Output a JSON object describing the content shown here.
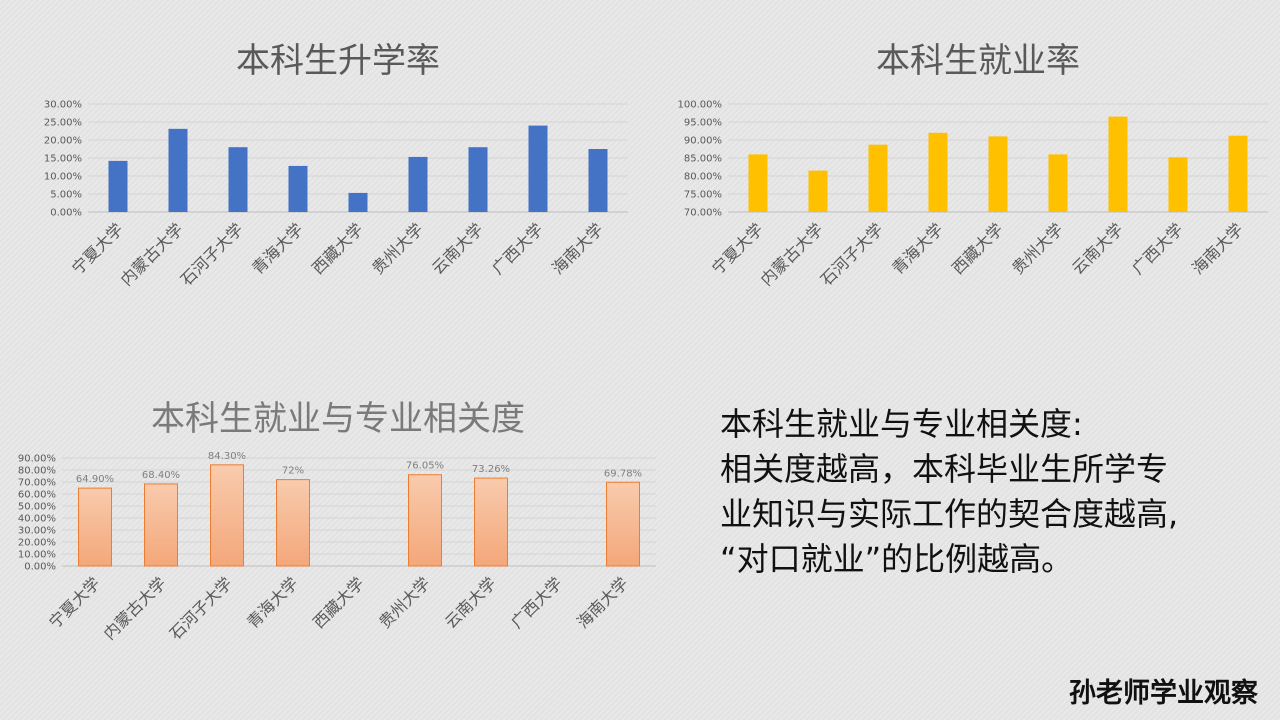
{
  "chart_data": [
    {
      "type": "bar",
      "title": "本科生升学率",
      "categories": [
        "宁夏大学",
        "内蒙古大学",
        "石河子大学",
        "青海大学",
        "西藏大学",
        "贵州大学",
        "云南大学",
        "广西大学",
        "海南大学"
      ],
      "values": [
        14.2,
        23.1,
        18.0,
        12.8,
        5.3,
        15.3,
        18.0,
        24.0,
        17.5
      ],
      "ylim": [
        0,
        30
      ],
      "yticks": [
        "0.00%",
        "5.00%",
        "10.00%",
        "15.00%",
        "20.00%",
        "25.00%",
        "30.00%"
      ],
      "color": "#4472c4",
      "grid": true
    },
    {
      "type": "bar",
      "title": "本科生就业率",
      "categories": [
        "宁夏大学",
        "内蒙古大学",
        "石河子大学",
        "青海大学",
        "西藏大学",
        "贵州大学",
        "云南大学",
        "广西大学",
        "海南大学"
      ],
      "values": [
        86.0,
        81.5,
        88.7,
        92.0,
        91.0,
        86.0,
        96.5,
        85.2,
        91.2
      ],
      "ylim": [
        70,
        100
      ],
      "yticks": [
        "70.00%",
        "75.00%",
        "80.00%",
        "85.00%",
        "90.00%",
        "95.00%",
        "100.00%"
      ],
      "color": "#ffc000",
      "grid": true
    },
    {
      "type": "bar",
      "title": "本科生就业与专业相关度",
      "categories": [
        "宁夏大学",
        "内蒙古大学",
        "石河子大学",
        "青海大学",
        "西藏大学",
        "贵州大学",
        "云南大学",
        "广西大学",
        "海南大学"
      ],
      "values": [
        64.9,
        68.4,
        84.3,
        72,
        null,
        76.05,
        73.26,
        null,
        69.78
      ],
      "data_labels": [
        "64.90%",
        "68.40%",
        "84.30%",
        "72%",
        "",
        "76.05%",
        "73.26%",
        "",
        "69.78%"
      ],
      "ylim": [
        0,
        90
      ],
      "yticks": [
        "0.00%",
        "10.00%",
        "20.00%",
        "30.00%",
        "40.00%",
        "50.00%",
        "60.00%",
        "70.00%",
        "80.00%",
        "90.00%"
      ],
      "color": "#f4b183",
      "border_color": "#ed7d31",
      "grid": true
    }
  ],
  "note": {
    "lines": [
      "本科生就业与专业相关度:",
      "相关度越高，本科毕业生所学专",
      "业知识与实际工作的契合度越高,",
      "“对口就业”的比例越高。"
    ]
  },
  "brand": "孙老师学业观察"
}
